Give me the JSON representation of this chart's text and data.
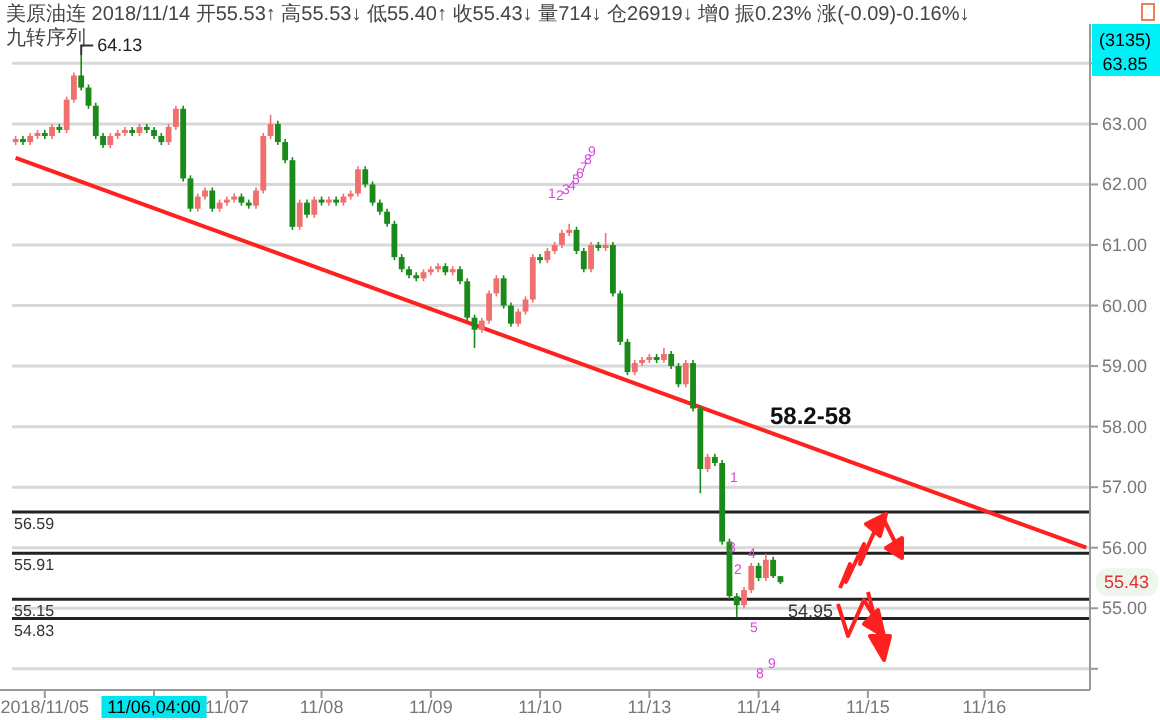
{
  "chart_data": {
    "type": "candlestick",
    "title": "美原油连 2018/11/14 开55.53↑ 高55.53↓ 低55.40↑ 收55.43↓ 量714↓ 仓26919↓ 增0 振0.23% 涨(-0.09)-0.16%↓",
    "subtitle": "九转序列",
    "categories": [
      null,
      null,
      null,
      null,
      "2018/11/05",
      null,
      null,
      null,
      null,
      null,
      null,
      null,
      null,
      null,
      null,
      null,
      null,
      null,
      null,
      "11/06,04:00",
      null,
      null,
      null,
      null,
      null,
      null,
      null,
      null,
      null,
      "11/07",
      null,
      null,
      null,
      null,
      null,
      null,
      null,
      null,
      null,
      null,
      null,
      null,
      "11/08",
      null,
      null,
      null,
      null,
      null,
      null,
      null,
      null,
      null,
      null,
      null,
      null,
      null,
      null,
      "11/09",
      null,
      null,
      null,
      null,
      null,
      null,
      null,
      null,
      null,
      null,
      null,
      null,
      null,
      null,
      "11/10",
      null,
      null,
      null,
      null,
      null,
      null,
      null,
      null,
      null,
      null,
      null,
      null,
      null,
      null,
      "11/13",
      null,
      null,
      null,
      null,
      null,
      null,
      null,
      null,
      null,
      null,
      null,
      null,
      null,
      null,
      "11/14",
      null,
      null,
      null,
      null,
      null,
      null,
      null,
      null,
      null,
      null,
      null,
      null,
      null,
      null,
      "11/15",
      null,
      null,
      null,
      null,
      null,
      null,
      null,
      null,
      null,
      null,
      null,
      null,
      null,
      null,
      null,
      "11/16",
      null,
      null,
      null,
      null,
      null,
      null,
      null,
      null,
      null,
      null,
      null,
      null,
      null,
      null
    ],
    "ohlc": [
      [
        62.7,
        62.8,
        62.65,
        62.75
      ],
      [
        62.75,
        62.8,
        62.65,
        62.7
      ],
      [
        62.7,
        62.85,
        62.65,
        62.8
      ],
      [
        62.8,
        62.9,
        62.75,
        62.85
      ],
      [
        62.85,
        62.9,
        62.75,
        62.8
      ],
      [
        62.8,
        63.0,
        62.75,
        62.95
      ],
      [
        62.95,
        63.0,
        62.85,
        62.9
      ],
      [
        62.9,
        63.45,
        62.85,
        63.4
      ],
      [
        63.4,
        63.85,
        63.35,
        63.8
      ],
      [
        63.8,
        64.13,
        63.55,
        63.6
      ],
      [
        63.6,
        63.65,
        63.25,
        63.3
      ],
      [
        63.3,
        63.35,
        62.75,
        62.8
      ],
      [
        62.8,
        62.85,
        62.6,
        62.65
      ],
      [
        62.65,
        62.85,
        62.6,
        62.8
      ],
      [
        62.8,
        62.9,
        62.75,
        62.85
      ],
      [
        62.85,
        62.95,
        62.8,
        62.9
      ],
      [
        62.9,
        62.95,
        62.8,
        62.85
      ],
      [
        62.85,
        63.0,
        62.8,
        62.95
      ],
      [
        62.95,
        63.0,
        62.85,
        62.9
      ],
      [
        62.9,
        62.95,
        62.75,
        62.8
      ],
      [
        62.8,
        62.85,
        62.65,
        62.7
      ],
      [
        62.7,
        63.0,
        62.65,
        62.95
      ],
      [
        62.95,
        63.3,
        62.9,
        63.25
      ],
      [
        63.25,
        63.3,
        62.05,
        62.1
      ],
      [
        62.1,
        62.15,
        61.55,
        61.6
      ],
      [
        61.6,
        61.85,
        61.55,
        61.8
      ],
      [
        61.8,
        61.95,
        61.75,
        61.9
      ],
      [
        61.9,
        61.95,
        61.55,
        61.6
      ],
      [
        61.6,
        61.75,
        61.55,
        61.7
      ],
      [
        61.7,
        61.8,
        61.65,
        61.75
      ],
      [
        61.75,
        61.85,
        61.7,
        61.8
      ],
      [
        61.8,
        61.85,
        61.65,
        61.7
      ],
      [
        61.7,
        61.75,
        61.6,
        61.65
      ],
      [
        61.65,
        61.95,
        61.6,
        61.9
      ],
      [
        61.9,
        62.85,
        61.85,
        62.8
      ],
      [
        62.8,
        63.15,
        62.75,
        63.0
      ],
      [
        63.0,
        63.05,
        62.65,
        62.7
      ],
      [
        62.7,
        62.75,
        62.35,
        62.4
      ],
      [
        62.4,
        62.45,
        61.25,
        61.3
      ],
      [
        61.3,
        61.75,
        61.25,
        61.7
      ],
      [
        61.7,
        61.75,
        61.45,
        61.5
      ],
      [
        61.5,
        61.8,
        61.45,
        61.75
      ],
      [
        61.75,
        61.8,
        61.65,
        61.7
      ],
      [
        61.7,
        61.8,
        61.65,
        61.75
      ],
      [
        61.75,
        61.8,
        61.65,
        61.7
      ],
      [
        61.7,
        61.85,
        61.65,
        61.8
      ],
      [
        61.8,
        61.9,
        61.75,
        61.85
      ],
      [
        61.85,
        62.3,
        61.8,
        62.25
      ],
      [
        62.25,
        62.3,
        61.95,
        62.0
      ],
      [
        62.0,
        62.05,
        61.65,
        61.7
      ],
      [
        61.7,
        61.75,
        61.5,
        61.55
      ],
      [
        61.55,
        61.6,
        61.3,
        61.35
      ],
      [
        61.35,
        61.4,
        60.75,
        60.8
      ],
      [
        60.8,
        60.85,
        60.55,
        60.6
      ],
      [
        60.6,
        60.65,
        60.45,
        60.5
      ],
      [
        60.5,
        60.55,
        60.4,
        60.45
      ],
      [
        60.45,
        60.6,
        60.4,
        60.55
      ],
      [
        60.55,
        60.65,
        60.5,
        60.6
      ],
      [
        60.6,
        60.7,
        60.55,
        60.65
      ],
      [
        60.65,
        60.7,
        60.5,
        60.55
      ],
      [
        60.55,
        60.65,
        60.5,
        60.6
      ],
      [
        60.6,
        60.65,
        60.35,
        60.4
      ],
      [
        60.4,
        60.45,
        59.75,
        59.8
      ],
      [
        59.8,
        59.85,
        59.3,
        59.6
      ],
      [
        59.6,
        59.8,
        59.55,
        59.75
      ],
      [
        59.75,
        60.25,
        59.7,
        60.2
      ],
      [
        60.2,
        60.5,
        60.15,
        60.45
      ],
      [
        60.45,
        60.5,
        59.95,
        60.0
      ],
      [
        60.0,
        60.05,
        59.65,
        59.7
      ],
      [
        59.7,
        59.95,
        59.65,
        59.9
      ],
      [
        59.9,
        60.15,
        59.85,
        60.1
      ],
      [
        60.1,
        60.85,
        60.05,
        60.8
      ],
      [
        60.8,
        60.85,
        60.7,
        60.75
      ],
      [
        60.75,
        60.95,
        60.7,
        60.9
      ],
      [
        60.9,
        61.05,
        60.85,
        61.0
      ],
      [
        61.0,
        61.25,
        60.95,
        61.2
      ],
      [
        61.2,
        61.35,
        61.15,
        61.25
      ],
      [
        61.25,
        61.3,
        60.85,
        60.9
      ],
      [
        60.9,
        60.95,
        60.55,
        60.6
      ],
      [
        60.6,
        61.05,
        60.55,
        61.0
      ],
      [
        61.0,
        61.05,
        60.9,
        60.95
      ],
      [
        60.95,
        61.2,
        60.9,
        61.0
      ],
      [
        61.0,
        61.05,
        60.15,
        60.2
      ],
      [
        60.2,
        60.25,
        59.35,
        59.4
      ],
      [
        59.4,
        59.45,
        58.85,
        58.9
      ],
      [
        58.9,
        59.1,
        58.85,
        59.05
      ],
      [
        59.05,
        59.15,
        59.0,
        59.1
      ],
      [
        59.1,
        59.2,
        59.05,
        59.15
      ],
      [
        59.15,
        59.2,
        59.05,
        59.1
      ],
      [
        59.1,
        59.3,
        59.05,
        59.2
      ],
      [
        59.2,
        59.25,
        58.95,
        59.0
      ],
      [
        59.0,
        59.05,
        58.65,
        58.7
      ],
      [
        58.7,
        59.1,
        58.65,
        59.05
      ],
      [
        59.05,
        59.1,
        58.25,
        58.3
      ],
      [
        58.3,
        58.35,
        56.9,
        57.3
      ],
      [
        57.3,
        57.55,
        57.25,
        57.5
      ],
      [
        57.5,
        57.55,
        57.35,
        57.4
      ],
      [
        57.4,
        57.45,
        56.05,
        56.1
      ],
      [
        56.1,
        56.15,
        55.15,
        55.2
      ],
      [
        55.2,
        55.25,
        54.85,
        55.05
      ],
      [
        55.05,
        55.35,
        55.0,
        55.3
      ],
      [
        55.3,
        55.75,
        55.25,
        55.7
      ],
      [
        55.7,
        55.75,
        55.45,
        55.5
      ],
      [
        55.5,
        55.9,
        55.45,
        55.8
      ],
      [
        55.8,
        55.85,
        55.5,
        55.53
      ],
      [
        55.53,
        55.53,
        55.4,
        55.43
      ],
      null,
      null,
      null,
      null,
      null,
      null,
      null,
      null,
      null,
      null,
      null,
      null,
      null,
      null,
      null,
      null,
      null,
      null,
      null,
      null,
      null,
      null,
      null,
      null,
      null,
      null,
      null,
      null,
      null,
      null,
      null,
      null,
      null,
      null,
      null,
      null,
      null,
      null,
      null,
      null,
      null,
      null
    ],
    "colors": [
      "#f07070",
      "#1a8a1a",
      "#f07070",
      "#f07070",
      "#1a8a1a",
      "#f07070",
      "#1a8a1a",
      "#f07070",
      "#f07070",
      "#1a8a1a",
      "#1a8a1a",
      "#1a8a1a",
      "#1a8a1a",
      "#f07070",
      "#f07070",
      "#f07070",
      "#1a8a1a",
      "#f07070",
      "#1a8a1a",
      "#1a8a1a",
      "#1a8a1a",
      "#f07070",
      "#f07070",
      "#1a8a1a",
      "#1a8a1a",
      "#f07070",
      "#f07070",
      "#1a8a1a",
      "#f07070",
      "#f07070",
      "#f07070",
      "#1a8a1a",
      "#1a8a1a",
      "#f07070",
      "#f07070",
      "#f07070",
      "#1a8a1a",
      "#1a8a1a",
      "#1a8a1a",
      "#f07070",
      "#1a8a1a",
      "#f07070",
      "#1a8a1a",
      "#f07070",
      "#1a8a1a",
      "#f07070",
      "#f07070",
      "#f07070",
      "#1a8a1a",
      "#1a8a1a",
      "#1a8a1a",
      "#1a8a1a",
      "#1a8a1a",
      "#1a8a1a",
      "#1a8a1a",
      "#1a8a1a",
      "#f07070",
      "#f07070",
      "#f07070",
      "#1a8a1a",
      "#f07070",
      "#1a8a1a",
      "#1a8a1a",
      "#1a8a1a",
      "#f07070",
      "#f07070",
      "#f07070",
      "#1a8a1a",
      "#1a8a1a",
      "#f07070",
      "#f07070",
      "#f07070",
      "#1a8a1a",
      "#f07070",
      "#f07070",
      "#f07070",
      "#f07070",
      "#1a8a1a",
      "#1a8a1a",
      "#f07070",
      "#1a8a1a",
      "#f07070",
      "#1a8a1a",
      "#1a8a1a",
      "#1a8a1a",
      "#f07070",
      "#f07070",
      "#f07070",
      "#1a8a1a",
      "#f07070",
      "#1a8a1a",
      "#1a8a1a",
      "#f07070",
      "#1a8a1a",
      "#1a8a1a",
      "#f07070",
      "#1a8a1a",
      "#1a8a1a",
      "#1a8a1a",
      "#1a8a1a",
      "#f07070",
      "#f07070",
      "#1a8a1a",
      "#f07070",
      "#1a8a1a",
      "#1a8a1a",
      null,
      null,
      null,
      null,
      null,
      null,
      null,
      null,
      null,
      null,
      null,
      null,
      null,
      null,
      null,
      null,
      null,
      null,
      null,
      null,
      null,
      null,
      null,
      null,
      null,
      null,
      null,
      null,
      null,
      null,
      null,
      null,
      null,
      null,
      null,
      null,
      null,
      null,
      null,
      null,
      null,
      null
    ],
    "series": [
      {
        "type": "line",
        "color": "#ff2020",
        "values": [
          62.44,
          null,
          null,
          null,
          null,
          null,
          null,
          null,
          null,
          null,
          null,
          null,
          null,
          null,
          null,
          null,
          null,
          null,
          null,
          null,
          null,
          null,
          null,
          null,
          null,
          null,
          null,
          null,
          null,
          null,
          null,
          null,
          null,
          null,
          null,
          null,
          null,
          null,
          null,
          null,
          null,
          null,
          null,
          null,
          null,
          null,
          null,
          null,
          null,
          null,
          null,
          null,
          null,
          null,
          null,
          null,
          null,
          null,
          null,
          null,
          null,
          null,
          null,
          null,
          null,
          null,
          null,
          null,
          null,
          null,
          null,
          null,
          null,
          null,
          null,
          null,
          null,
          null,
          null,
          null,
          null,
          null,
          null,
          null,
          null,
          null,
          null,
          null,
          null,
          null,
          null,
          null,
          null,
          null,
          null,
          null,
          null,
          null,
          null,
          null,
          null,
          null,
          null,
          null,
          null,
          null,
          null,
          null,
          null,
          null,
          null,
          null,
          null,
          null,
          null,
          null,
          null,
          null,
          null,
          null,
          null,
          null,
          null,
          null,
          null,
          null,
          null,
          null,
          null,
          null,
          null,
          null,
          null,
          null,
          null,
          null,
          null,
          null,
          null,
          null,
          null,
          null,
          null,
          null,
          null,
          null,
          null,
          56.0
        ]
      }
    ],
    "ylim": [
      53.65,
      64.65
    ],
    "yticks": [
      {
        "value": 54,
        "label": null
      },
      {
        "value": 55,
        "label": "55.00"
      },
      {
        "value": 56,
        "label": "56.00"
      },
      {
        "value": 57,
        "label": "57.00"
      },
      {
        "value": 58,
        "label": "58.00"
      },
      {
        "value": 59,
        "label": "59.00"
      },
      {
        "value": 60,
        "label": "60.00"
      },
      {
        "value": 61,
        "label": "61.00"
      },
      {
        "value": 62,
        "label": "62.00"
      },
      {
        "value": 63,
        "label": "63.00"
      },
      {
        "value": 64,
        "label": null
      }
    ],
    "grid": "y",
    "ref_lines": [
      {
        "axis": "y",
        "value": 56.59,
        "label": "56.59",
        "color": "#222222"
      },
      {
        "axis": "y",
        "value": 55.91,
        "label": "55.91",
        "color": "#222222"
      },
      {
        "axis": "y",
        "value": 55.15,
        "label": "55.15",
        "color": "#222222"
      },
      {
        "axis": "y",
        "value": 54.83,
        "label": "54.83",
        "color": "#222222"
      }
    ],
    "annotations": [
      "(3135)",
      "63.85",
      "58.2-58",
      "1",
      "2",
      "3",
      "4",
      "5",
      "6",
      "7",
      "8",
      "9",
      "1",
      "3",
      "4",
      "2",
      "5",
      "8",
      "9",
      "64.13",
      "55.43",
      {
        "text": "54.95",
        "y": 54.95
      }
    ]
  }
}
